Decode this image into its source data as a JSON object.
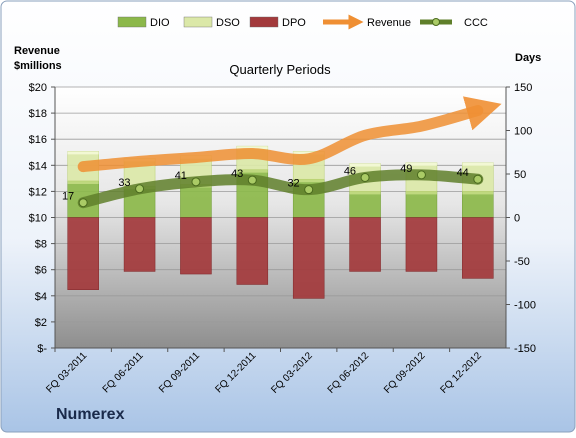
{
  "chart_data": {
    "type": "bar",
    "title": "Quarterly Periods",
    "company": "Numerex",
    "left_axis_title": [
      "Revenue",
      "$millions"
    ],
    "right_axis_title": "Days",
    "categories": [
      "FQ 03-2011",
      "FQ 06-2011",
      "FQ 09-2011",
      "FQ 12-2011",
      "FQ 03-2012",
      "FQ 06-2012",
      "FQ 09-2012",
      "FQ 12-2012"
    ],
    "left_axis": {
      "min": 0,
      "max": 20,
      "step": 2,
      "tick_labels": [
        "$-",
        "$2",
        "$4",
        "$6",
        "$8",
        "$10",
        "$12",
        "$14",
        "$16",
        "$18",
        "$20"
      ]
    },
    "right_axis": {
      "min": -150,
      "max": 150,
      "step": 50,
      "tick_labels": [
        "-150",
        "-100",
        "-50",
        "0",
        "50",
        "100",
        "150"
      ]
    },
    "grid": true,
    "legend_position": "top",
    "series": [
      {
        "name": "DIO",
        "axis": "days",
        "kind": "stacked-bar",
        "color": "#8cb84a",
        "values": [
          42,
          36,
          38,
          55,
          44,
          30,
          30,
          30
        ]
      },
      {
        "name": "DSO",
        "axis": "days",
        "kind": "stacked-bar",
        "color": "#dbe8a8",
        "values": [
          34,
          32,
          33,
          27,
          32,
          32,
          33,
          33
        ]
      },
      {
        "name": "DPO",
        "axis": "days",
        "kind": "negative-bar",
        "color": "#a33a3c",
        "values": [
          -83,
          -62,
          -65,
          -77,
          -93,
          -62,
          -62,
          -70
        ]
      },
      {
        "name": "Revenue",
        "axis": "revenue",
        "kind": "arrow-line",
        "color": "#ef8f33",
        "values": [
          13.9,
          14.3,
          14.6,
          14.9,
          14.5,
          16.3,
          17.0,
          18.2
        ]
      },
      {
        "name": "CCC",
        "axis": "days",
        "kind": "line",
        "color": "#5f7f2a",
        "values": [
          17,
          33,
          41,
          43,
          32,
          46,
          49,
          44
        ],
        "labels": [
          "17",
          "33",
          "41",
          "43",
          "32",
          "46",
          "49",
          "44"
        ]
      }
    ],
    "legend": [
      {
        "name": "DIO",
        "symbol": "bar",
        "color": "#8cb84a"
      },
      {
        "name": "DSO",
        "symbol": "bar",
        "color": "#dbe8a8"
      },
      {
        "name": "DPO",
        "symbol": "bar",
        "color": "#a33a3c"
      },
      {
        "name": "Revenue",
        "symbol": "arrow",
        "color": "#ef8f33"
      },
      {
        "name": "CCC",
        "symbol": "line",
        "color": "#5f7f2a"
      }
    ]
  }
}
